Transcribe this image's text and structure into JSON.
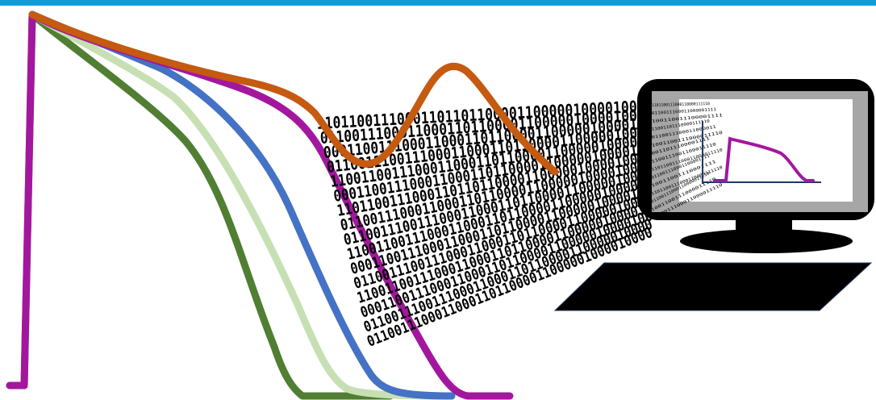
{
  "colors": {
    "top_rule": "#0f9bd7",
    "trace_dark_green": "#507e32",
    "trace_light_green": "#c6e0b4",
    "trace_blue": "#4472c4",
    "trace_purple": "#a3179e",
    "trace_orange": "#c55a11",
    "monitor_frame": "#000000",
    "monitor_screen": "#a6a6a6",
    "monitor_panel": "#ffffff",
    "mini_axes": "#1f3864"
  },
  "traces": [
    {
      "name": "dark-green-trace"
    },
    {
      "name": "light-green-trace"
    },
    {
      "name": "blue-trace"
    },
    {
      "name": "purple-trace"
    }
  ],
  "binary_stream": {
    "rows": [
      "110110011100011011011000011000001000010000",
      "011001110001100011011000011000001000010000",
      "000110011100011000110110000110000010000100",
      "011001110011100011000110110000110000010000",
      "110011001110001100011011000011000001000010",
      "000110011100011000110110000110000010000100",
      "110110011100011011011000011000001000010000",
      "011001110001100011011000011000001000010000",
      "011001110011100011000110110000110000010000",
      "110011001110001100011011000011000001000010",
      "000110011100011000110110000110000010000100",
      "011001110011100011000110110000110000010000",
      "110011001110001100011011000011000001000010",
      "000110011100011000110110000110000010000100",
      "011001110011100011000110110000110000010000",
      "011001110001100011011000011000001000010000"
    ],
    "screen_rows": [
      "1101100111000110000111110",
      "0110011100011000001111",
      "100110011100001111",
      "11001101110000111110",
      "0110011100011000011",
      "1001100111000011110",
      "0011011100001111",
      "1100111001100011110",
      "110110011100011000011110",
      "011001110001100001111",
      "10011001110001111",
      "1101100111000110000111110",
      "01100111000110000011110",
      "1001100111000011110",
      "0110011100011000011110"
    ]
  }
}
